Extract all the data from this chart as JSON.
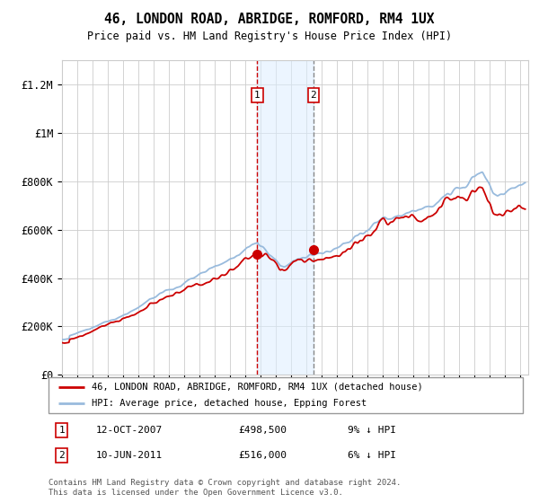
{
  "title": "46, LONDON ROAD, ABRIDGE, ROMFORD, RM4 1UX",
  "subtitle": "Price paid vs. HM Land Registry's House Price Index (HPI)",
  "ylabel_ticks": [
    "£0",
    "£200K",
    "£400K",
    "£600K",
    "£800K",
    "£1M",
    "£1.2M"
  ],
  "ytick_vals": [
    0,
    200000,
    400000,
    600000,
    800000,
    1000000,
    1200000
  ],
  "ylim": [
    0,
    1300000
  ],
  "xlim_start": 1995.0,
  "xlim_end": 2025.5,
  "line1_color": "#cc0000",
  "line2_color": "#99bbdd",
  "sale1_date": 2007.78,
  "sale1_price": 498500,
  "sale2_date": 2011.44,
  "sale2_price": 516000,
  "legend_label1": "46, LONDON ROAD, ABRIDGE, ROMFORD, RM4 1UX (detached house)",
  "legend_label2": "HPI: Average price, detached house, Epping Forest",
  "annot1_date": "12-OCT-2007",
  "annot1_price": "£498,500",
  "annot1_hpi": "9% ↓ HPI",
  "annot2_date": "10-JUN-2011",
  "annot2_price": "£516,000",
  "annot2_hpi": "6% ↓ HPI",
  "footer": "Contains HM Land Registry data © Crown copyright and database right 2024.\nThis data is licensed under the Open Government Licence v3.0.",
  "background_color": "#ffffff",
  "grid_color": "#cccccc",
  "shade_color": "#ddeeff"
}
